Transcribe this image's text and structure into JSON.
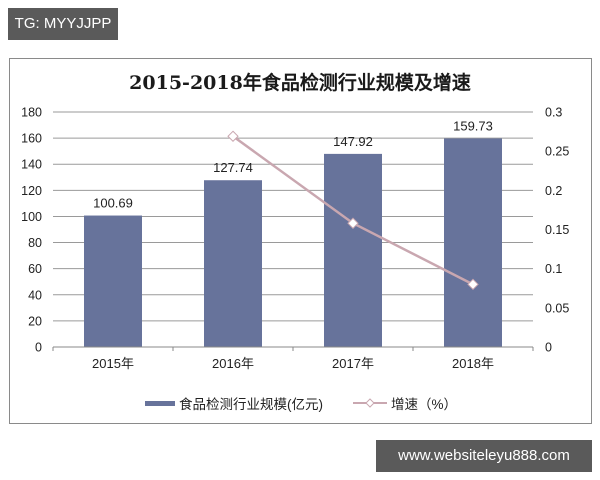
{
  "watermark_top": "TG: MYYJJPP",
  "watermark_bottom": "www.websiteleyu888.com",
  "colors": {
    "bar": "#67739b",
    "line": "#c9a7b0",
    "marker_fill": "#ffffff",
    "grid": "#9a9a9a",
    "tag_bg": "#5a5a5a"
  },
  "legend": {
    "bar_label": "食品检测行业规模(亿元)",
    "line_label": "增速（%）"
  },
  "chart_data": {
    "type": "bar",
    "title": "2015-2018年食品检测行业规模及增速",
    "categories": [
      "2015年",
      "2016年",
      "2017年",
      "2018年"
    ],
    "series": [
      {
        "name": "食品检测行业规模(亿元)",
        "type": "bar",
        "axis": "left",
        "values": [
          100.69,
          127.74,
          147.92,
          159.73
        ],
        "data_labels": [
          "100.69",
          "127.74",
          "147.92",
          "159.73"
        ]
      },
      {
        "name": "增速（%）",
        "type": "line",
        "axis": "right",
        "values": [
          null,
          0.269,
          0.158,
          0.08
        ]
      }
    ],
    "xlabel": "",
    "ylabel": "",
    "ylim": [
      0,
      180
    ],
    "y_ticks": [
      "0",
      "20",
      "40",
      "60",
      "80",
      "100",
      "120",
      "140",
      "160",
      "180"
    ],
    "y2lim": [
      0,
      0.3
    ],
    "y2_ticks": [
      "0",
      "0.05",
      "0.1",
      "0.15",
      "0.2",
      "0.25",
      "0.3"
    ],
    "grid": true,
    "legend_position": "bottom"
  }
}
